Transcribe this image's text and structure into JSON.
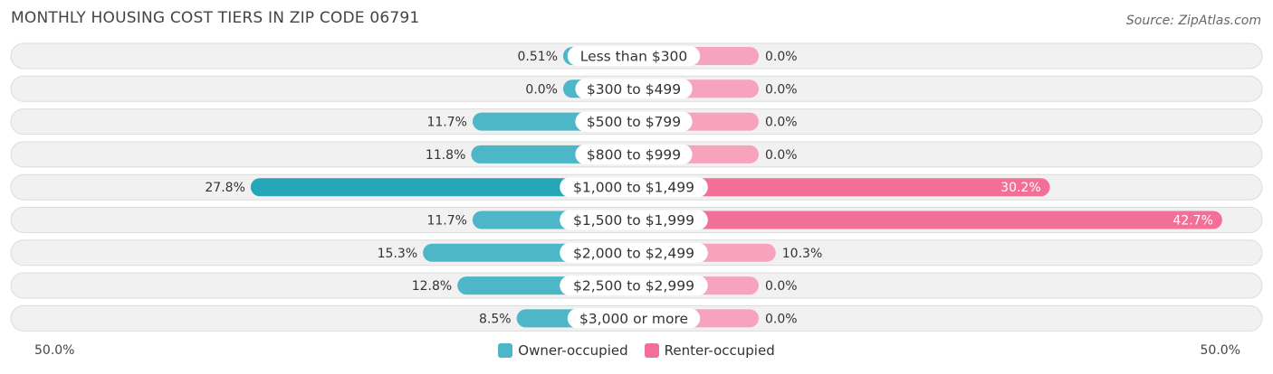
{
  "title": "MONTHLY HOUSING COST TIERS IN ZIP CODE 06791",
  "source": "Source: ZipAtlas.com",
  "colors": {
    "owner": "#4eb7c7",
    "owner_strong": "#26a6b7",
    "renter": "#f7a3bd",
    "renter_strong": "#f27097",
    "row_bg": "#f1f1f1",
    "row_border": "#dcdcdc"
  },
  "axis": {
    "left_label": "50.0%",
    "right_label": "50.0%"
  },
  "legend": {
    "owner_label": "Owner-occupied",
    "renter_label": "Renter-occupied"
  },
  "chart_data": {
    "type": "bar",
    "orientation": "diverging-horizontal",
    "xlim": [
      -50,
      50
    ],
    "categories": [
      "Less than $300",
      "$300 to $499",
      "$500 to $799",
      "$800 to $999",
      "$1,000 to $1,499",
      "$1,500 to $1,999",
      "$2,000 to $2,499",
      "$2,500 to $2,999",
      "$3,000 or more"
    ],
    "series": [
      {
        "name": "Owner-occupied",
        "values": [
          0.51,
          0.0,
          11.7,
          11.8,
          27.8,
          11.7,
          15.3,
          12.8,
          8.5
        ],
        "labels": [
          "0.51%",
          "0.0%",
          "11.7%",
          "11.8%",
          "27.8%",
          "11.7%",
          "15.3%",
          "12.8%",
          "8.5%"
        ]
      },
      {
        "name": "Renter-occupied",
        "values": [
          0.0,
          0.0,
          0.0,
          0.0,
          30.2,
          42.7,
          10.3,
          0.0,
          0.0
        ],
        "labels": [
          "0.0%",
          "0.0%",
          "0.0%",
          "0.0%",
          "30.2%",
          "42.7%",
          "10.3%",
          "0.0%",
          "0.0%"
        ]
      }
    ],
    "legend_position": "bottom-center"
  }
}
